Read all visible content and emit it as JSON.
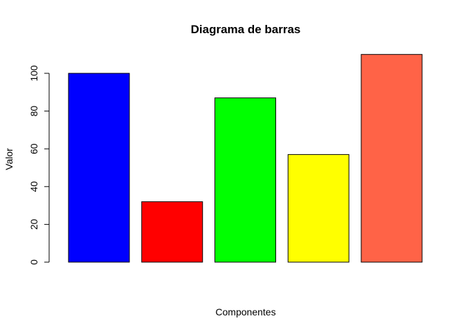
{
  "chart_data": {
    "type": "bar",
    "title": "Diagrama de barras",
    "xlabel": "Componentes",
    "ylabel": "Valor",
    "categories": [
      "",
      "",
      "",
      "",
      ""
    ],
    "values": [
      100,
      32,
      87,
      57,
      110
    ],
    "colors": [
      "#0000ff",
      "#ff0000",
      "#00ff00",
      "#ffff00",
      "#ff6347"
    ],
    "ylim": [
      0,
      110
    ],
    "yticks": [
      0,
      20,
      40,
      60,
      80,
      100
    ],
    "ytick_labels": [
      "0",
      "20",
      "40",
      "60",
      "80",
      "100"
    ],
    "grid": false,
    "legend": "none"
  }
}
